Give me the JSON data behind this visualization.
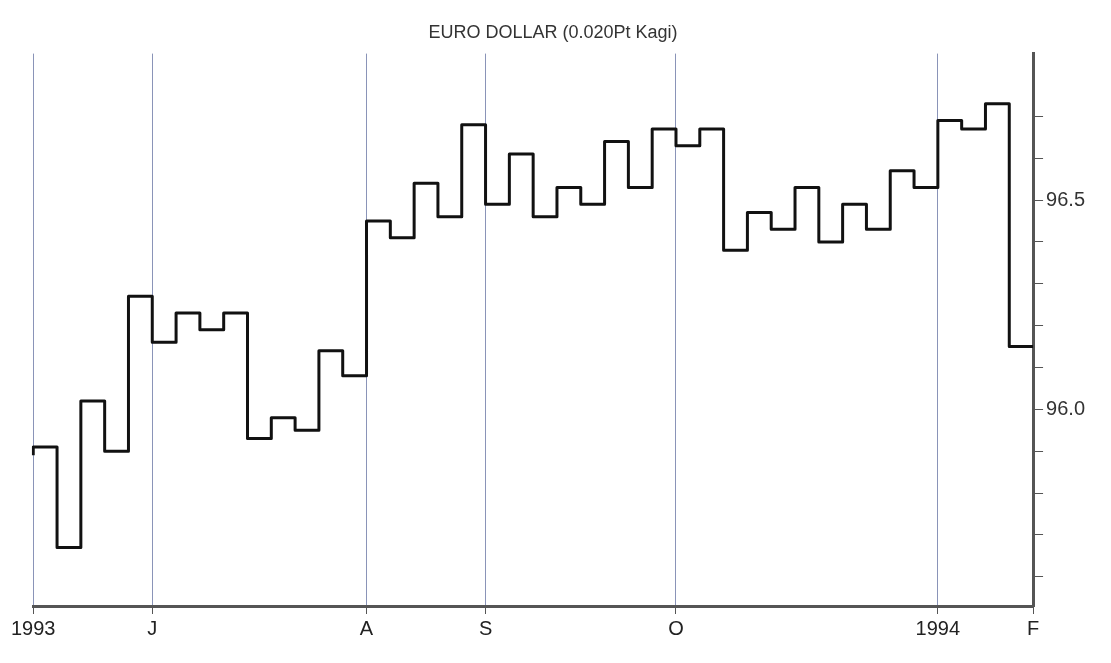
{
  "chart_data": {
    "type": "step",
    "title": "EURO DOLLAR (0.020Pt Kagi)",
    "categories": [
      "1993",
      null,
      null,
      null,
      null,
      "J",
      null,
      null,
      null,
      null,
      null,
      null,
      null,
      null,
      "A",
      null,
      null,
      null,
      null,
      "S",
      null,
      null,
      null,
      null,
      null,
      null,
      null,
      "O",
      null,
      null,
      null,
      null,
      null,
      null,
      null,
      null,
      null,
      null,
      "1994",
      null,
      null,
      null,
      "F"
    ],
    "series": [
      {
        "color": "#111111",
        "values": [
          95.89,
          95.91,
          95.67,
          96.02,
          95.9,
          96.27,
          96.16,
          96.23,
          96.19,
          96.23,
          95.93,
          95.98,
          95.95,
          96.14,
          96.08,
          96.45,
          96.41,
          96.54,
          96.46,
          96.68,
          96.49,
          96.61,
          96.46,
          96.53,
          96.49,
          96.64,
          96.53,
          96.67,
          96.63,
          96.67,
          96.38,
          96.47,
          96.43,
          96.53,
          96.4,
          96.49,
          96.43,
          96.57,
          96.53,
          96.69,
          96.67,
          96.73,
          96.15
        ]
      }
    ],
    "ylim": [
      95.53,
      96.85
    ],
    "yticks": [
      {
        "value": 95.6,
        "label": null
      },
      {
        "value": 95.7,
        "label": null
      },
      {
        "value": 95.8,
        "label": null
      },
      {
        "value": 95.9,
        "label": null
      },
      {
        "value": 96,
        "label": "96.0"
      },
      {
        "value": 96.1,
        "label": null
      },
      {
        "value": 96.2,
        "label": null
      },
      {
        "value": 96.3,
        "label": null
      },
      {
        "value": 96.4,
        "label": null
      },
      96.5,
      {
        "value": 96.6,
        "label": null
      },
      {
        "value": 96.7,
        "label": null
      }
    ],
    "grid": "x",
    "legend": false
  }
}
